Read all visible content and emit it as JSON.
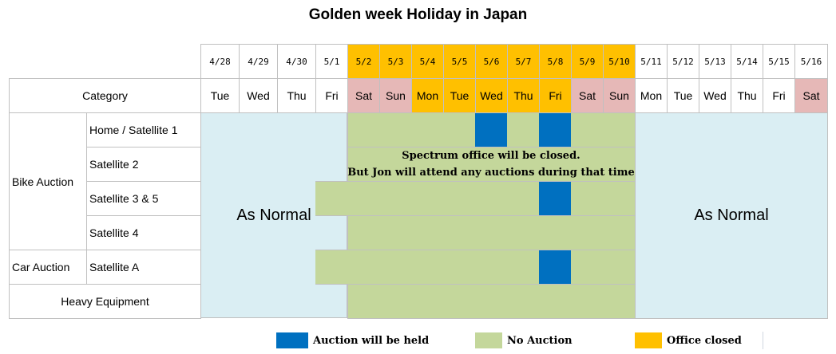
{
  "title": "Golden week Holiday in Japan",
  "colors": {
    "blue": "#0070C0",
    "green": "#C4D79B",
    "orange": "#FFC000",
    "pink": "#E6B8B7",
    "light_blue": "#DAEEF3"
  },
  "dates": [
    "4/28",
    "4/29",
    "4/30",
    "5/1",
    "5/2",
    "5/3",
    "5/4",
    "5/5",
    "5/6",
    "5/7",
    "5/8",
    "5/9",
    "5/10",
    "5/11",
    "5/12",
    "5/13",
    "5/14",
    "5/15",
    "5/16"
  ],
  "days": [
    "Tue",
    "Wed",
    "Thu",
    "Fri",
    "Sat",
    "Sun",
    "Mon",
    "Tue",
    "Wed",
    "Thu",
    "Fri",
    "Sat",
    "Sun",
    "Mon",
    "Tue",
    "Wed",
    "Thu",
    "Fri",
    "Sat"
  ],
  "office_closed_dates": [
    4,
    5,
    6,
    7,
    8,
    9,
    10,
    11,
    12
  ],
  "weekend_days": [
    4,
    5,
    11,
    12,
    18
  ],
  "holiday_weekdays": [
    6,
    7,
    8,
    9,
    10
  ],
  "category_header": "Category",
  "groups": [
    {
      "label": "Bike Auction"
    },
    {
      "label": "Car Auction"
    }
  ],
  "rows": [
    {
      "label": "Home / Satellite 1",
      "auction_days": [
        8,
        10
      ],
      "early_no_auction": false
    },
    {
      "label": "Satellite 2",
      "auction_days": [],
      "early_no_auction": false
    },
    {
      "label": "Satellite 3 & 5",
      "auction_days": [
        10
      ],
      "early_no_auction": true
    },
    {
      "label": "Satellite 4",
      "auction_days": [],
      "early_no_auction": false
    },
    {
      "label": "Satellite A",
      "auction_days": [
        10
      ],
      "early_no_auction": true
    },
    {
      "label": "Heavy Equipment",
      "auction_days": [],
      "early_no_auction": false
    }
  ],
  "as_normal_left": "As Normal",
  "as_normal_right": "As Normal",
  "note_line1": "Spectrum office will be closed.",
  "note_line2": "But Jon will attend any auctions during that time",
  "legend": [
    {
      "label": "Auction will be held",
      "color": "#0070C0"
    },
    {
      "label": "No Auction",
      "color": "#C4D79B"
    },
    {
      "label": "Office closed",
      "color": "#FFC000"
    }
  ]
}
